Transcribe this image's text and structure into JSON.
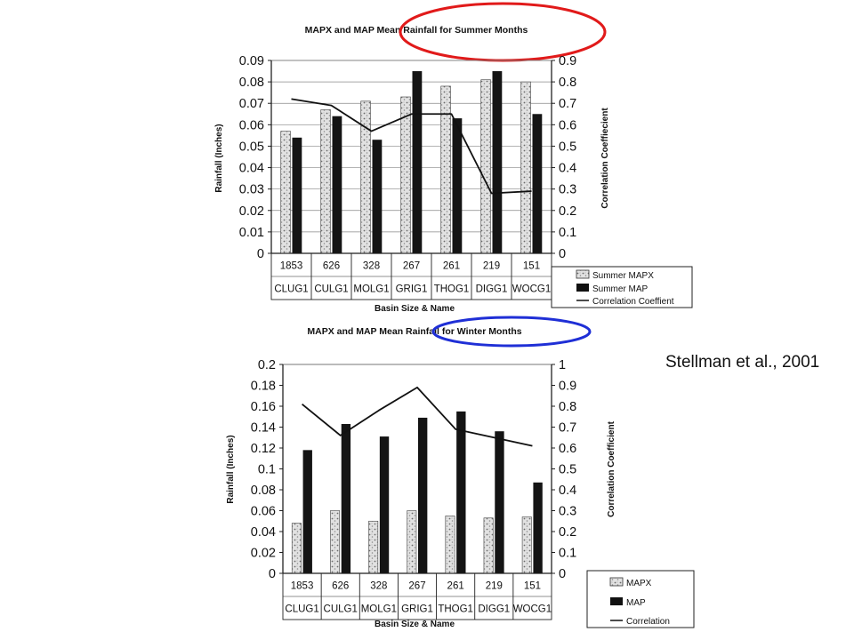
{
  "citation": "Stellman et al., 2001",
  "highlight_colors": {
    "summer_ellipse": "#e11a1a",
    "winter_ellipse": "#1f2fd6"
  },
  "chart_data": [
    {
      "type": "bar",
      "title": "MAPX and MAP Mean Rainfall for Summer Months",
      "xlabel": "Basin Size & Name",
      "ylabel": "Rainfall (Inches)",
      "y2label": "Correlation Coeffiecient",
      "ylim": [
        0,
        0.09
      ],
      "y2lim": [
        0,
        0.9
      ],
      "y_ticks": [
        "0",
        "0.01",
        "0.02",
        "0.03",
        "0.04",
        "0.05",
        "0.06",
        "0.07",
        "0.08",
        "0.09"
      ],
      "y2_ticks": [
        "0",
        "0.1",
        "0.2",
        "0.3",
        "0.4",
        "0.5",
        "0.6",
        "0.7",
        "0.8",
        "0.9"
      ],
      "sizes": [
        "1853",
        "626",
        "328",
        "267",
        "261",
        "219",
        "151"
      ],
      "categories": [
        "CLUG1",
        "CULG1",
        "MOLG1",
        "GRIG1",
        "THOG1",
        "DIGG1",
        "WOCG1"
      ],
      "grid": true,
      "legend_position": "bottom-right",
      "series": [
        {
          "name": "Summer MAPX",
          "kind": "bar",
          "style": "speckled",
          "values": [
            0.057,
            0.067,
            0.071,
            0.073,
            0.078,
            0.081,
            0.08
          ]
        },
        {
          "name": "Summer MAP",
          "kind": "bar",
          "style": "solid",
          "values": [
            0.054,
            0.064,
            0.053,
            0.085,
            0.063,
            0.085,
            0.065
          ]
        },
        {
          "name": "Correlation Coeffient",
          "kind": "line",
          "axis": "right",
          "values": [
            0.72,
            0.69,
            0.57,
            0.65,
            0.65,
            0.28,
            0.29
          ]
        }
      ]
    },
    {
      "type": "bar",
      "title": "MAPX and MAP Mean Rainfall for Winter Months",
      "xlabel": "Basin Size & Name",
      "ylabel": "Rainfall (Inches)",
      "y2label": "Correlation Coefficient",
      "ylim": [
        0,
        0.2
      ],
      "y2lim": [
        0,
        1
      ],
      "y_ticks": [
        "0",
        "0.02",
        "0.04",
        "0.06",
        "0.08",
        "0.1",
        "0.12",
        "0.14",
        "0.16",
        "0.18",
        "0.2"
      ],
      "y2_ticks": [
        "0",
        "0.1",
        "0.2",
        "0.3",
        "0.4",
        "0.5",
        "0.6",
        "0.7",
        "0.8",
        "0.9",
        "1"
      ],
      "sizes": [
        "1853",
        "626",
        "328",
        "267",
        "261",
        "219",
        "151"
      ],
      "categories": [
        "CLUG1",
        "CULG1",
        "MOLG1",
        "GRIG1",
        "THOG1",
        "DIGG1",
        "WOCG1"
      ],
      "grid": false,
      "legend_position": "bottom-right",
      "series": [
        {
          "name": "MAPX",
          "kind": "bar",
          "style": "speckled",
          "values": [
            0.048,
            0.06,
            0.05,
            0.06,
            0.055,
            0.053,
            0.054
          ]
        },
        {
          "name": "MAP",
          "kind": "bar",
          "style": "solid",
          "values": [
            0.118,
            0.143,
            0.131,
            0.149,
            0.155,
            0.136,
            0.087
          ]
        },
        {
          "name": "Correlation",
          "kind": "line",
          "axis": "right",
          "values": [
            0.81,
            0.66,
            0.78,
            0.89,
            0.69,
            0.65,
            0.61
          ]
        }
      ]
    }
  ]
}
